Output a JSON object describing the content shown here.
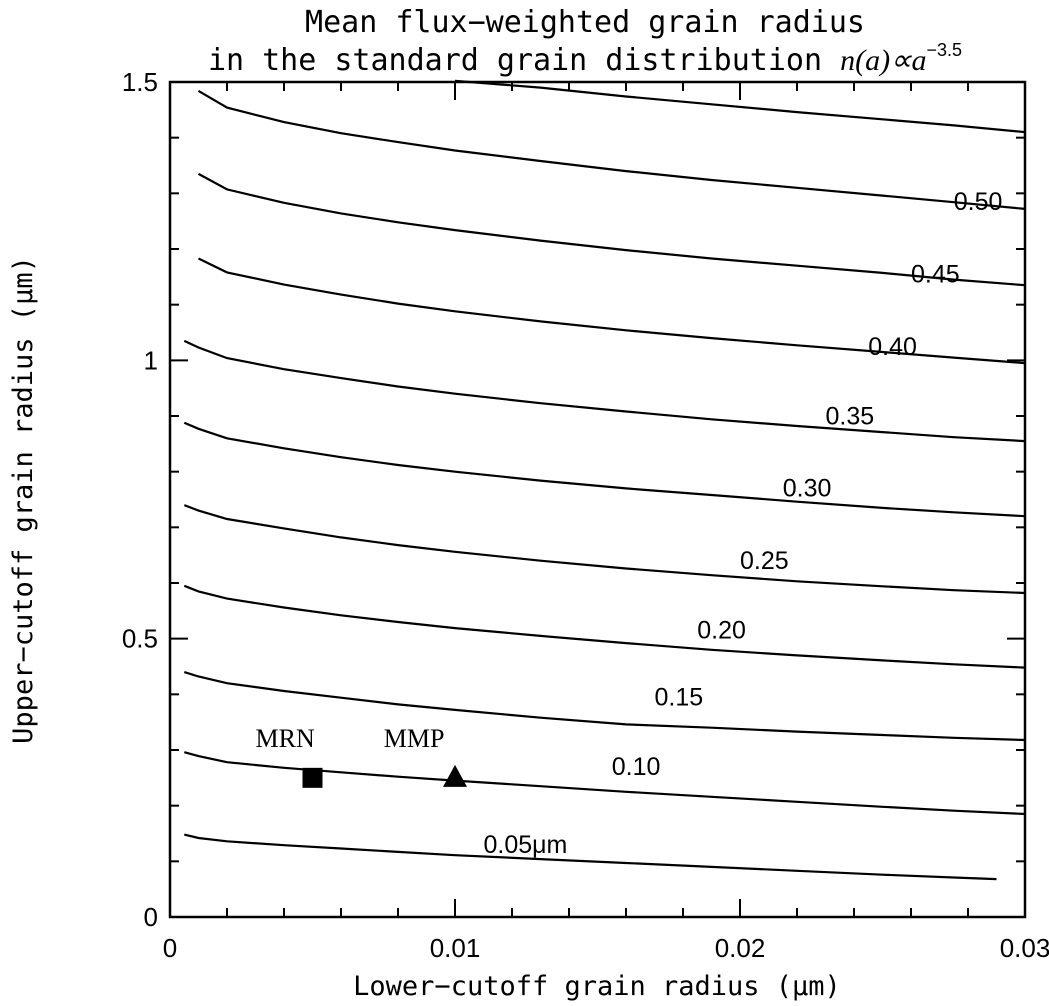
{
  "chart_data": {
    "type": "line",
    "title": "Mean flux−weighted grain radius",
    "subtitle_prefix": "in the standard grain distribution ",
    "subtitle_math": "n(a)∝a",
    "subtitle_exponent": "−3.5",
    "xlabel": "Lower−cutoff grain radius (μm)",
    "ylabel": "Upper−cutoff grain radius (μm)",
    "xlim": [
      0,
      0.03
    ],
    "ylim": [
      0,
      1.5
    ],
    "xticks": [
      {
        "value": 0,
        "label": "0"
      },
      {
        "value": 0.01,
        "label": "0.01"
      },
      {
        "value": 0.02,
        "label": "0.02"
      },
      {
        "value": 0.03,
        "label": "0.03"
      }
    ],
    "yticks": [
      {
        "value": 0,
        "label": "0"
      },
      {
        "value": 0.5,
        "label": "0.5"
      },
      {
        "value": 1,
        "label": "1"
      },
      {
        "value": 1.5,
        "label": "1.5"
      }
    ],
    "grid": false,
    "series": [
      {
        "name": "0.05μm",
        "label_at": [
          0.011,
          0.115
        ],
        "x": [
          0.0005,
          0.001,
          0.002,
          0.004,
          0.006,
          0.008,
          0.01,
          0.013,
          0.016,
          0.019,
          0.022,
          0.025,
          0.0275,
          0.029
        ],
        "y": [
          0.148,
          0.142,
          0.136,
          0.129,
          0.123,
          0.117,
          0.111,
          0.104,
          0.097,
          0.09,
          0.083,
          0.076,
          0.071,
          0.068
        ]
      },
      {
        "name": "0.10",
        "label_at": [
          0.0155,
          0.255
        ],
        "x": [
          0.0005,
          0.001,
          0.002,
          0.004,
          0.006,
          0.008,
          0.01,
          0.013,
          0.016,
          0.019,
          0.022,
          0.025,
          0.0275,
          0.03
        ],
        "y": [
          0.296,
          0.289,
          0.278,
          0.268,
          0.26,
          0.252,
          0.245,
          0.235,
          0.225,
          0.216,
          0.207,
          0.198,
          0.191,
          0.185
        ]
      },
      {
        "name": "0.15",
        "label_at": [
          0.017,
          0.38
        ],
        "x": [
          0.0005,
          0.001,
          0.002,
          0.004,
          0.006,
          0.008,
          0.01,
          0.013,
          0.016,
          0.019,
          0.022,
          0.025,
          0.0275,
          0.03
        ],
        "y": [
          0.44,
          0.432,
          0.42,
          0.406,
          0.394,
          0.382,
          0.372,
          0.358,
          0.346,
          0.34,
          0.333,
          0.327,
          0.322,
          0.318
        ]
      },
      {
        "name": "0.20",
        "label_at": [
          0.0185,
          0.5
        ],
        "x": [
          0.0005,
          0.001,
          0.002,
          0.004,
          0.006,
          0.008,
          0.01,
          0.013,
          0.016,
          0.019,
          0.022,
          0.025,
          0.0275,
          0.03
        ],
        "y": [
          0.595,
          0.585,
          0.572,
          0.556,
          0.542,
          0.53,
          0.519,
          0.505,
          0.492,
          0.48,
          0.47,
          0.461,
          0.454,
          0.448
        ]
      },
      {
        "name": "0.25",
        "label_at": [
          0.02,
          0.625
        ],
        "x": [
          0.0005,
          0.001,
          0.002,
          0.004,
          0.006,
          0.008,
          0.01,
          0.013,
          0.016,
          0.019,
          0.022,
          0.025,
          0.0275,
          0.03
        ],
        "y": [
          0.74,
          0.73,
          0.715,
          0.698,
          0.682,
          0.668,
          0.656,
          0.64,
          0.626,
          0.614,
          0.603,
          0.594,
          0.587,
          0.582
        ]
      },
      {
        "name": "0.30",
        "label_at": [
          0.0215,
          0.755
        ],
        "x": [
          0.0005,
          0.001,
          0.002,
          0.004,
          0.006,
          0.008,
          0.01,
          0.013,
          0.016,
          0.019,
          0.022,
          0.025,
          0.0275,
          0.03
        ],
        "y": [
          0.888,
          0.877,
          0.86,
          0.842,
          0.826,
          0.812,
          0.8,
          0.784,
          0.77,
          0.758,
          0.746,
          0.735,
          0.727,
          0.72
        ]
      },
      {
        "name": "0.35",
        "label_at": [
          0.023,
          0.885
        ],
        "x": [
          0.0005,
          0.001,
          0.002,
          0.004,
          0.006,
          0.008,
          0.01,
          0.013,
          0.016,
          0.019,
          0.022,
          0.025,
          0.0275,
          0.03
        ],
        "y": [
          1.035,
          1.023,
          1.004,
          0.984,
          0.968,
          0.953,
          0.94,
          0.923,
          0.908,
          0.894,
          0.882,
          0.871,
          0.862,
          0.855
        ]
      },
      {
        "name": "0.40",
        "label_at": [
          0.0245,
          1.01
        ],
        "x": [
          0.001,
          0.002,
          0.004,
          0.006,
          0.008,
          0.01,
          0.013,
          0.016,
          0.019,
          0.022,
          0.025,
          0.0275,
          0.03
        ],
        "y": [
          1.183,
          1.158,
          1.136,
          1.118,
          1.102,
          1.088,
          1.07,
          1.054,
          1.04,
          1.027,
          1.015,
          1.005,
          0.995
        ]
      },
      {
        "name": "0.45",
        "label_at": [
          0.026,
          1.14
        ],
        "x": [
          0.001,
          0.002,
          0.004,
          0.006,
          0.008,
          0.01,
          0.013,
          0.016,
          0.019,
          0.022,
          0.025,
          0.0275,
          0.03
        ],
        "y": [
          1.335,
          1.307,
          1.283,
          1.264,
          1.248,
          1.234,
          1.215,
          1.198,
          1.183,
          1.17,
          1.157,
          1.145,
          1.135
        ]
      },
      {
        "name": "0.50",
        "label_at": [
          0.0275,
          1.27
        ],
        "x": [
          0.001,
          0.002,
          0.004,
          0.006,
          0.008,
          0.01,
          0.013,
          0.016,
          0.019,
          0.022,
          0.025,
          0.0275,
          0.03
        ],
        "y": [
          1.484,
          1.454,
          1.428,
          1.408,
          1.392,
          1.377,
          1.358,
          1.34,
          1.324,
          1.31,
          1.296,
          1.284,
          1.272
        ]
      },
      {
        "name": "",
        "label_at": null,
        "x": [
          0.01,
          0.013,
          0.016,
          0.019,
          0.022,
          0.025,
          0.0275,
          0.03
        ],
        "y": [
          1.502,
          1.49,
          1.474,
          1.46,
          1.446,
          1.433,
          1.422,
          1.41
        ]
      }
    ],
    "markers": [
      {
        "name": "MRN",
        "shape": "square",
        "x": 0.005,
        "y": 0.25,
        "label_at": [
          0.003,
          0.305
        ]
      },
      {
        "name": "MMP",
        "shape": "triangle",
        "x": 0.01,
        "y": 0.25,
        "label_at": [
          0.0075,
          0.305
        ]
      }
    ]
  }
}
